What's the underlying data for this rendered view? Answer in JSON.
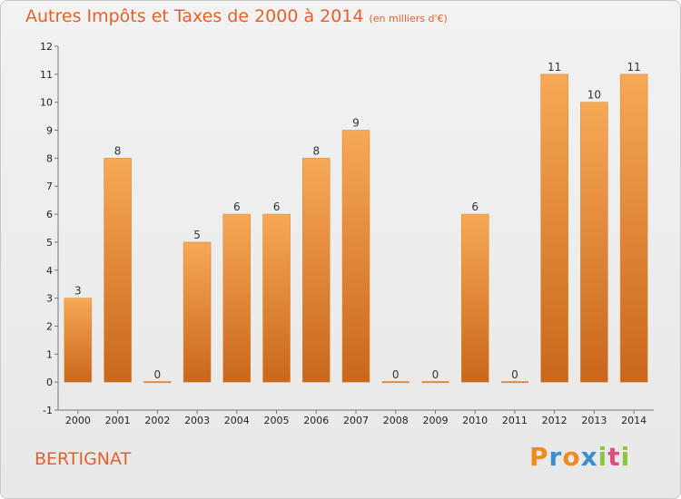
{
  "title": "Autres Impôts et Taxes de 2000 à 2014",
  "subtitle": "(en milliers d'€)",
  "commune": "BERTIGNAT",
  "logo": {
    "letters": [
      "P",
      "r",
      "o",
      "x",
      "i",
      "t",
      "i"
    ],
    "colors": [
      "#f28a1e",
      "#3b8ed6",
      "#f28a1e",
      "#3b8ed6",
      "#8cc63f",
      "#e04f7b",
      "#8cc63f"
    ]
  },
  "colors": {
    "title": "#e5602a",
    "bar_light": "#f5a653",
    "bar_dark": "#c8661a"
  },
  "chart_data": {
    "type": "bar",
    "categories": [
      "2000",
      "2001",
      "2002",
      "2003",
      "2004",
      "2005",
      "2006",
      "2007",
      "2008",
      "2009",
      "2010",
      "2011",
      "2012",
      "2013",
      "2014"
    ],
    "values": [
      3,
      8,
      0,
      5,
      6,
      6,
      8,
      9,
      0,
      0,
      6,
      0,
      11,
      10,
      11
    ],
    "yticks": [
      "-1",
      "0",
      "1",
      "2",
      "3",
      "4",
      "5",
      "6",
      "7",
      "8",
      "9",
      "10",
      "11",
      "12"
    ],
    "ylim": [
      -1,
      12
    ],
    "grid": false,
    "legend": "none"
  }
}
